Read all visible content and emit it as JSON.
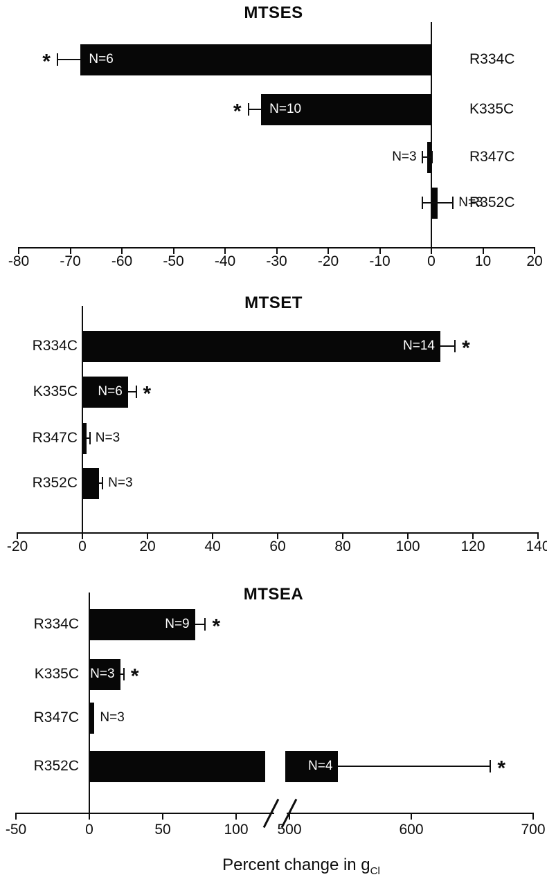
{
  "figure": {
    "xlabel_main": "Percent change in g",
    "xlabel_sub": "Cl",
    "sig_symbol": "*",
    "bar_color": "#070707",
    "background": "#ffffff"
  },
  "chart_data": [
    {
      "type": "bar",
      "title": "MTSES",
      "orientation": "horizontal",
      "categories": [
        "R334C",
        "K335C",
        "R347C",
        "R352C"
      ],
      "values": [
        -68,
        -33,
        -0.8,
        1.2
      ],
      "errors": [
        4.5,
        2.5,
        1,
        3
      ],
      "error_style": [
        "cap",
        "cap",
        "sym",
        "sym"
      ],
      "n_labels": [
        "N=6",
        "N=10",
        "N=3",
        "N=3"
      ],
      "n_inside": [
        true,
        true,
        false,
        false
      ],
      "significant": [
        true,
        true,
        false,
        false
      ],
      "category_side": "right",
      "xlim": [
        -80,
        20
      ],
      "ticks": [
        -80,
        -70,
        -60,
        -50,
        -40,
        -30,
        -20,
        -10,
        0,
        10,
        20
      ],
      "grid": false,
      "legend": "none"
    },
    {
      "type": "bar",
      "title": "MTSET",
      "orientation": "horizontal",
      "categories": [
        "R334C",
        "K335C",
        "R347C",
        "R352C"
      ],
      "values": [
        110,
        14,
        1.3,
        5.2
      ],
      "errors": [
        4.5,
        2.5,
        1,
        1
      ],
      "error_style": [
        "cap",
        "cap",
        "cap",
        "cap"
      ],
      "n_labels": [
        "N=14",
        "N=6",
        "N=3",
        "N=3"
      ],
      "n_inside": [
        true,
        true,
        false,
        false
      ],
      "significant": [
        true,
        true,
        false,
        false
      ],
      "category_side": "left",
      "xlim": [
        -20,
        140
      ],
      "ticks": [
        -20,
        0,
        20,
        40,
        60,
        80,
        100,
        120,
        140
      ],
      "grid": false,
      "legend": "none"
    },
    {
      "type": "bar",
      "title": "MTSEA",
      "orientation": "horizontal",
      "categories": [
        "R334C",
        "K335C",
        "R347C",
        "R352C"
      ],
      "values": [
        72,
        21,
        3.5,
        540
      ],
      "errors": [
        7,
        2.5,
        0,
        125
      ],
      "error_style": [
        "cap",
        "cap",
        "cap",
        "cap"
      ],
      "n_labels": [
        "N=9",
        "N=3",
        "N=3",
        "N=4"
      ],
      "n_inside": [
        true,
        true,
        false,
        true
      ],
      "significant": [
        true,
        true,
        false,
        true
      ],
      "category_side": "left",
      "xlim": [
        -50,
        700
      ],
      "axis_break": {
        "after": 100,
        "resume": 500
      },
      "ticks": [
        -50,
        0,
        50,
        100,
        500,
        600,
        700
      ],
      "grid": false,
      "legend": "none"
    }
  ]
}
